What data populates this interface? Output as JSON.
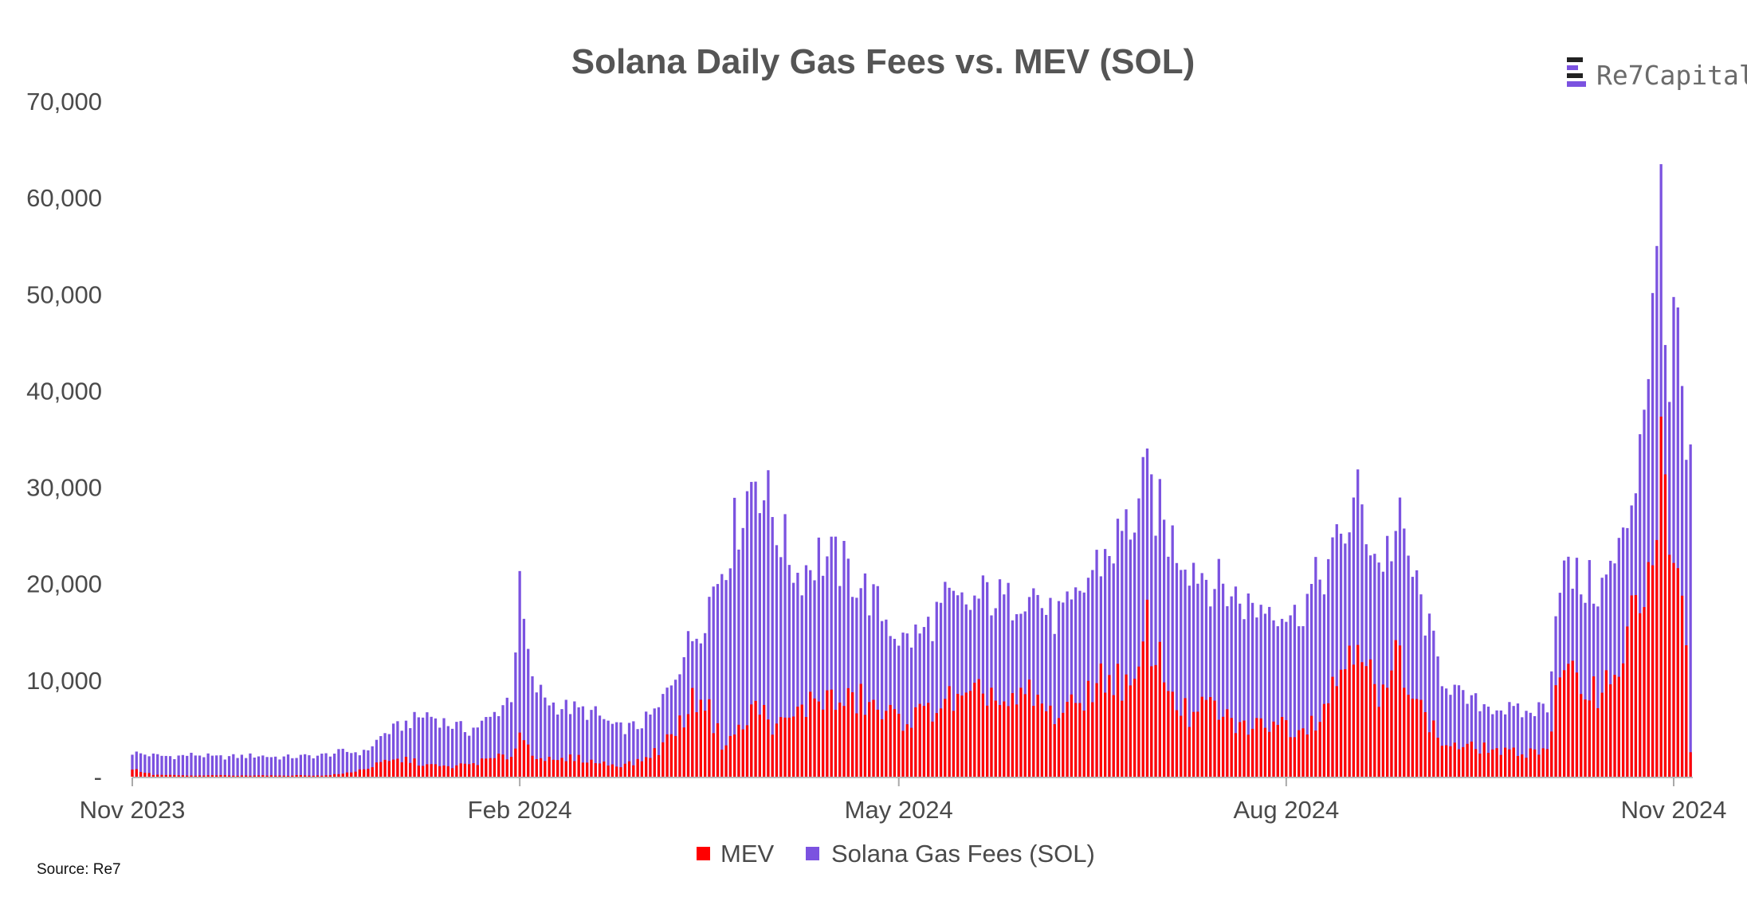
{
  "colors": {
    "mev": "#ff0000",
    "gas_fees": "#7b52e0",
    "title": "#555555",
    "axis_text": "#4a4a4a",
    "logo_text": "#6b6b6b",
    "logo_accent": "#7b52e0",
    "logo_dark": "#222222"
  },
  "logo": {
    "text": "Re7Capital",
    "icon": "re7-logo-icon"
  },
  "source": "Source: Re7",
  "chart_data": {
    "type": "bar",
    "stacking": "overlapping",
    "title": "Solana Daily Gas Fees vs. MEV (SOL)",
    "xlabel": "",
    "ylabel": "",
    "ylim": [
      0,
      70000
    ],
    "y_ticks": [
      0,
      10000,
      20000,
      30000,
      40000,
      50000,
      60000,
      70000
    ],
    "y_tick_labels": [
      "-",
      "10,000",
      "20,000",
      "30,000",
      "40,000",
      "50,000",
      "60,000",
      "70,000"
    ],
    "x_start": "2023-11-01",
    "x_end": "2024-11-05",
    "x_ticks": [
      "2023-11-01",
      "2024-02-01",
      "2024-05-01",
      "2024-08-01",
      "2024-11-01"
    ],
    "x_tick_labels": [
      "Nov 2023",
      "Feb 2024",
      "May 2024",
      "Aug 2024",
      "Nov 2024"
    ],
    "grid": false,
    "legend_position": "bottom-center",
    "series": [
      {
        "name": "Solana Gas Fees (SOL)",
        "color": "#7b52e0",
        "points": [
          [
            "2023-11-01",
            2500
          ],
          [
            "2023-11-06",
            2200
          ],
          [
            "2023-11-11",
            2100
          ],
          [
            "2023-11-16",
            2300
          ],
          [
            "2023-11-21",
            2000
          ],
          [
            "2023-11-26",
            2100
          ],
          [
            "2023-12-01",
            2200
          ],
          [
            "2023-12-06",
            2000
          ],
          [
            "2023-12-11",
            2100
          ],
          [
            "2023-12-16",
            2200
          ],
          [
            "2023-12-21",
            2600
          ],
          [
            "2023-12-26",
            2500
          ],
          [
            "2023-12-31",
            4500
          ],
          [
            "2024-01-05",
            5500
          ],
          [
            "2024-01-10",
            6500
          ],
          [
            "2024-01-15",
            5500
          ],
          [
            "2024-01-20",
            4800
          ],
          [
            "2024-01-25",
            6000
          ],
          [
            "2024-01-30",
            8500
          ],
          [
            "2024-02-01",
            19000
          ],
          [
            "2024-02-04",
            9500
          ],
          [
            "2024-02-09",
            7500
          ],
          [
            "2024-02-14",
            7000
          ],
          [
            "2024-02-19",
            6500
          ],
          [
            "2024-02-24",
            5000
          ],
          [
            "2024-02-29",
            5200
          ],
          [
            "2024-03-05",
            7000
          ],
          [
            "2024-03-10",
            12000
          ],
          [
            "2024-03-15",
            16000
          ],
          [
            "2024-03-20",
            22000
          ],
          [
            "2024-03-25",
            28000
          ],
          [
            "2024-03-28",
            32000
          ],
          [
            "2024-04-02",
            26000
          ],
          [
            "2024-04-07",
            21000
          ],
          [
            "2024-04-12",
            23000
          ],
          [
            "2024-04-17",
            22000
          ],
          [
            "2024-04-22",
            20000
          ],
          [
            "2024-04-27",
            17000
          ],
          [
            "2024-05-02",
            14000
          ],
          [
            "2024-05-07",
            15000
          ],
          [
            "2024-05-12",
            18000
          ],
          [
            "2024-05-17",
            17500
          ],
          [
            "2024-05-22",
            19000
          ],
          [
            "2024-05-27",
            18000
          ],
          [
            "2024-06-01",
            20000
          ],
          [
            "2024-06-06",
            16500
          ],
          [
            "2024-06-11",
            17000
          ],
          [
            "2024-06-16",
            21500
          ],
          [
            "2024-06-21",
            24000
          ],
          [
            "2024-06-26",
            27000
          ],
          [
            "2024-06-29",
            30500
          ],
          [
            "2024-07-04",
            25000
          ],
          [
            "2024-07-09",
            22500
          ],
          [
            "2024-07-14",
            20500
          ],
          [
            "2024-07-19",
            19000
          ],
          [
            "2024-07-24",
            17500
          ],
          [
            "2024-07-29",
            18000
          ],
          [
            "2024-08-03",
            16500
          ],
          [
            "2024-08-08",
            20000
          ],
          [
            "2024-08-13",
            23500
          ],
          [
            "2024-08-18",
            28800
          ],
          [
            "2024-08-23",
            22000
          ],
          [
            "2024-08-28",
            25800
          ],
          [
            "2024-09-02",
            18000
          ],
          [
            "2024-09-07",
            10500
          ],
          [
            "2024-09-12",
            8000
          ],
          [
            "2024-09-17",
            7500
          ],
          [
            "2024-09-22",
            7000
          ],
          [
            "2024-09-27",
            6500
          ],
          [
            "2024-10-02",
            7500
          ],
          [
            "2024-10-05",
            21500
          ],
          [
            "2024-10-10",
            20000
          ],
          [
            "2024-10-15",
            19500
          ],
          [
            "2024-10-20",
            24000
          ],
          [
            "2024-10-23",
            32000
          ],
          [
            "2024-10-26",
            44000
          ],
          [
            "2024-10-28",
            51000
          ],
          [
            "2024-10-29",
            62500
          ],
          [
            "2024-10-31",
            40000
          ],
          [
            "2024-11-02",
            47500
          ],
          [
            "2024-11-04",
            30000
          ],
          [
            "2024-11-05",
            31000
          ]
        ]
      },
      {
        "name": "MEV",
        "color": "#ff0000",
        "points": [
          [
            "2023-11-01",
            800
          ],
          [
            "2023-11-06",
            200
          ],
          [
            "2023-11-11",
            150
          ],
          [
            "2023-11-16",
            100
          ],
          [
            "2023-11-21",
            150
          ],
          [
            "2023-11-26",
            100
          ],
          [
            "2023-12-01",
            150
          ],
          [
            "2023-12-06",
            100
          ],
          [
            "2023-12-11",
            150
          ],
          [
            "2023-12-16",
            100
          ],
          [
            "2023-12-21",
            300
          ],
          [
            "2023-12-26",
            800
          ],
          [
            "2023-12-31",
            1500
          ],
          [
            "2024-01-05",
            1800
          ],
          [
            "2024-01-10",
            1200
          ],
          [
            "2024-01-15",
            1000
          ],
          [
            "2024-01-20",
            1300
          ],
          [
            "2024-01-25",
            1800
          ],
          [
            "2024-01-30",
            2200
          ],
          [
            "2024-02-01",
            4500
          ],
          [
            "2024-02-04",
            2500
          ],
          [
            "2024-02-09",
            1500
          ],
          [
            "2024-02-14",
            2000
          ],
          [
            "2024-02-19",
            1500
          ],
          [
            "2024-02-24",
            1200
          ],
          [
            "2024-02-29",
            1500
          ],
          [
            "2024-03-05",
            2800
          ],
          [
            "2024-03-10",
            5500
          ],
          [
            "2024-03-15",
            9000
          ],
          [
            "2024-03-20",
            3500
          ],
          [
            "2024-03-25",
            5000
          ],
          [
            "2024-03-28",
            7500
          ],
          [
            "2024-04-02",
            5000
          ],
          [
            "2024-04-07",
            6500
          ],
          [
            "2024-04-12",
            8500
          ],
          [
            "2024-04-17",
            7500
          ],
          [
            "2024-04-22",
            8000
          ],
          [
            "2024-04-27",
            6500
          ],
          [
            "2024-05-02",
            6000
          ],
          [
            "2024-05-07",
            6500
          ],
          [
            "2024-05-12",
            8000
          ],
          [
            "2024-05-17",
            7500
          ],
          [
            "2024-05-22",
            9000
          ],
          [
            "2024-05-27",
            7000
          ],
          [
            "2024-06-01",
            8500
          ],
          [
            "2024-06-06",
            6500
          ],
          [
            "2024-06-11",
            7000
          ],
          [
            "2024-06-16",
            9500
          ],
          [
            "2024-06-21",
            10500
          ],
          [
            "2024-06-26",
            8500
          ],
          [
            "2024-06-29",
            15500
          ],
          [
            "2024-07-04",
            9500
          ],
          [
            "2024-07-09",
            6000
          ],
          [
            "2024-07-14",
            7500
          ],
          [
            "2024-07-19",
            5500
          ],
          [
            "2024-07-24",
            5000
          ],
          [
            "2024-07-29",
            6000
          ],
          [
            "2024-08-03",
            5000
          ],
          [
            "2024-08-08",
            6000
          ],
          [
            "2024-08-13",
            10000
          ],
          [
            "2024-08-18",
            16000
          ],
          [
            "2024-08-23",
            7000
          ],
          [
            "2024-08-28",
            13000
          ],
          [
            "2024-09-02",
            7000
          ],
          [
            "2024-09-07",
            3500
          ],
          [
            "2024-09-12",
            3000
          ],
          [
            "2024-09-17",
            3000
          ],
          [
            "2024-09-22",
            2500
          ],
          [
            "2024-09-27",
            2500
          ],
          [
            "2024-10-02",
            3000
          ],
          [
            "2024-10-05",
            10500
          ],
          [
            "2024-10-10",
            9500
          ],
          [
            "2024-10-15",
            9000
          ],
          [
            "2024-10-20",
            13000
          ],
          [
            "2024-10-23",
            17000
          ],
          [
            "2024-10-26",
            21500
          ],
          [
            "2024-10-28",
            24000
          ],
          [
            "2024-10-29",
            33500
          ],
          [
            "2024-10-31",
            21000
          ],
          [
            "2024-11-02",
            20500
          ],
          [
            "2024-11-04",
            15000
          ],
          [
            "2024-11-05",
            2500
          ]
        ]
      }
    ]
  }
}
